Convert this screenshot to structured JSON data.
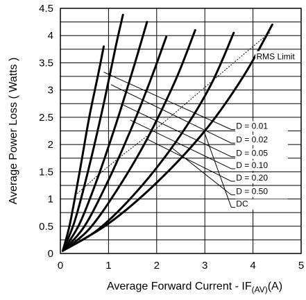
{
  "chart_data": {
    "type": "line",
    "xlabel": "Average Forward Current - IF(AV)(A)",
    "xlabel_parts": {
      "main": "Average Forward Current - I",
      "sub_pre": "F",
      "sub": "(AV)",
      "unit": "(A)"
    },
    "ylabel": "Average  Power Loss  ( Watts )",
    "xlim": [
      0,
      5
    ],
    "ylim": [
      0,
      4.5
    ],
    "x_ticks": [
      "0",
      "1",
      "2",
      "3",
      "4",
      "5"
    ],
    "y_ticks": [
      "0",
      "0.5",
      "1",
      "1.5",
      "2",
      "2.5",
      "3",
      "3.5",
      "4",
      "4.5"
    ],
    "grid": true,
    "series": [
      {
        "name": "D = 0.01",
        "x": [
          0.05,
          0.2,
          0.4,
          0.6,
          0.8,
          0.9
        ],
        "y": [
          0.05,
          0.55,
          1.5,
          2.5,
          3.35,
          3.8
        ]
      },
      {
        "name": "D = 0.02",
        "x": [
          0.05,
          0.3,
          0.6,
          0.9,
          1.15,
          1.3
        ],
        "y": [
          0.05,
          0.6,
          1.6,
          2.75,
          3.8,
          4.38
        ]
      },
      {
        "name": "D = 0.05",
        "x": [
          0.05,
          0.4,
          0.8,
          1.2,
          1.55,
          1.8
        ],
        "y": [
          0.05,
          0.55,
          1.45,
          2.5,
          3.5,
          4.25
        ]
      },
      {
        "name": "D = 0.10",
        "x": [
          0.05,
          0.5,
          1.0,
          1.5,
          1.9,
          2.2
        ],
        "y": [
          0.05,
          0.5,
          1.35,
          2.35,
          3.25,
          3.98
        ]
      },
      {
        "name": "D = 0.20",
        "x": [
          0.05,
          0.6,
          1.2,
          1.8,
          2.4,
          2.8
        ],
        "y": [
          0.05,
          0.45,
          1.2,
          2.1,
          3.2,
          4.1
        ]
      },
      {
        "name": "D = 0.50",
        "x": [
          0.05,
          0.8,
          1.6,
          2.4,
          3.1,
          3.6
        ],
        "y": [
          0.05,
          0.45,
          1.15,
          2.05,
          3.05,
          4.05
        ]
      },
      {
        "name": "DC",
        "x": [
          0.05,
          1.0,
          2.0,
          3.0,
          3.8,
          4.4
        ],
        "y": [
          0.05,
          0.55,
          1.3,
          2.25,
          3.25,
          4.2
        ]
      }
    ],
    "rms_limit": {
      "label": "RMS Limit",
      "x": [
        0.35,
        1.0,
        2.0,
        3.0,
        4.0,
        4.35
      ],
      "y": [
        1.1,
        1.6,
        2.3,
        3.05,
        3.8,
        4.05
      ]
    },
    "annotations": [
      "D = 0.01",
      "D = 0.02",
      "D = 0.05",
      "D = 0.10",
      "D = 0.20",
      "D = 0.50",
      "DC",
      "RMS Limit"
    ]
  }
}
